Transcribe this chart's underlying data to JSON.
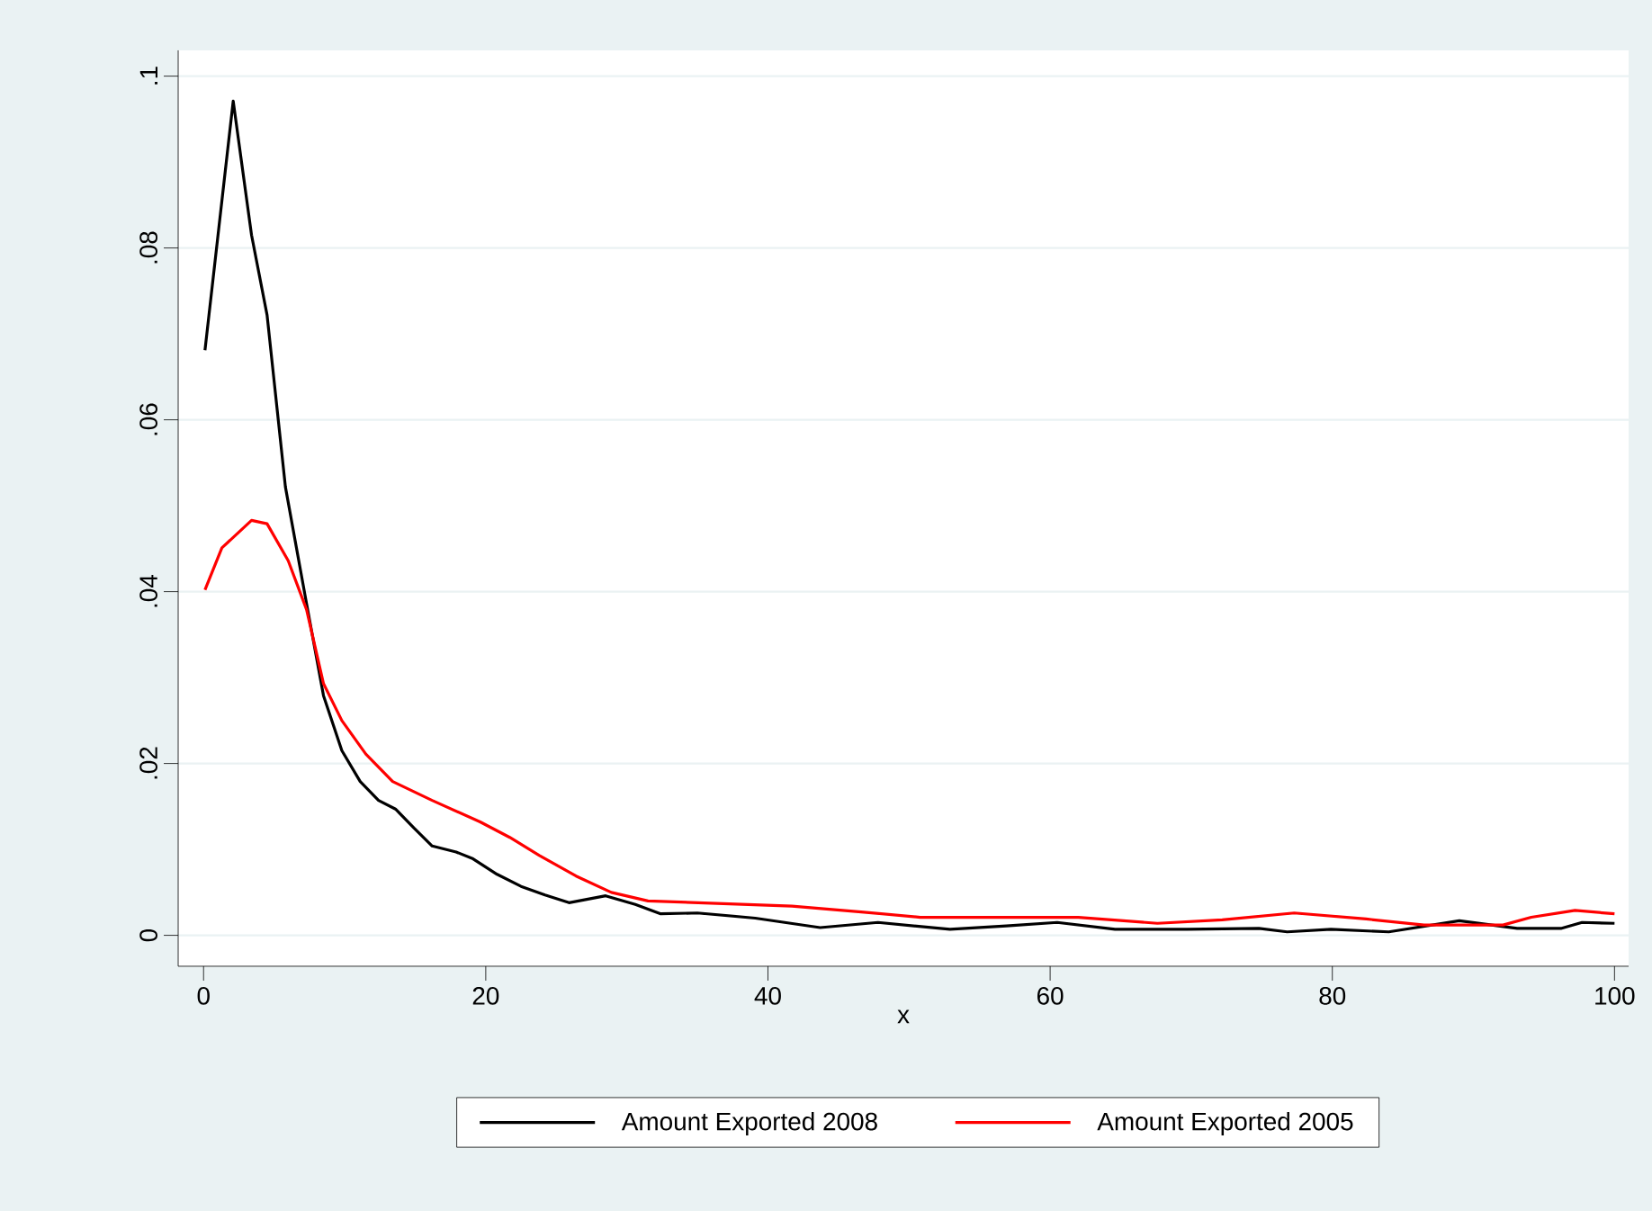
{
  "chart_data": {
    "type": "line",
    "xlabel": "x",
    "xlim": [
      -1.8,
      101
    ],
    "ylim": [
      -0.0036,
      0.103
    ],
    "xticks": [
      0,
      20,
      40,
      60,
      80,
      100
    ],
    "yticks": [
      0,
      {
        "value": 0.02,
        "label": ".02"
      },
      {
        "value": 0.04,
        "label": ".04"
      },
      {
        "value": 0.06,
        "label": ".06"
      },
      {
        "value": 0.08,
        "label": ".08"
      },
      {
        "value": 0.1,
        "label": ".1"
      }
    ],
    "grid": "y",
    "legend": "bottom",
    "marker": "none",
    "line_style": "solid",
    "series": [
      {
        "name": "Amount Exported 2008",
        "color": "#000000",
        "x": [
          0.1,
          2.1,
          3.4,
          4.5,
          5.8,
          7.3,
          8.5,
          9.8,
          11.1,
          12.4,
          13.6,
          14.9,
          16.2,
          17.9,
          19.1,
          20.8,
          22.5,
          24.2,
          25.9,
          28.5,
          30.6,
          32.4,
          35,
          39.1,
          43.7,
          47.8,
          52.9,
          56.9,
          60.5,
          64.6,
          69.7,
          74.8,
          76.8,
          79.9,
          84,
          89,
          93.1,
          96.2,
          97.7,
          100
        ],
        "values": [
          0.0681,
          0.0971,
          0.0815,
          0.0722,
          0.0522,
          0.0386,
          0.0279,
          0.0215,
          0.0179,
          0.0157,
          0.0147,
          0.0125,
          0.0104,
          0.0097,
          0.0089,
          0.0071,
          0.0057,
          0.0047,
          0.0038,
          0.0046,
          0.0036,
          0.0025,
          0.0026,
          0.002,
          0.0009,
          0.0015,
          0.0007,
          0.0011,
          0.0015,
          0.0007,
          0.0007,
          0.0008,
          0.0004,
          0.0007,
          0.0004,
          0.0017,
          0.0008,
          0.0008,
          0.0015,
          0.0014
        ]
      },
      {
        "name": "Amount Exported 2005",
        "color": "#ff0000",
        "x": [
          0.1,
          1.3,
          3.4,
          4.5,
          6.0,
          7.3,
          8.5,
          9.8,
          11.5,
          13.4,
          16.2,
          19.6,
          21.7,
          23.8,
          26.4,
          28.9,
          31.5,
          36.6,
          41.7,
          46.8,
          50.8,
          62,
          67.6,
          72.2,
          77.3,
          82.4,
          86.5,
          92.1,
          94.1,
          97.2,
          100
        ],
        "values": [
          0.0402,
          0.0451,
          0.0483,
          0.0479,
          0.0436,
          0.0379,
          0.0293,
          0.025,
          0.0211,
          0.0179,
          0.0157,
          0.0132,
          0.0114,
          0.0093,
          0.0069,
          0.005,
          0.004,
          0.0037,
          0.0034,
          0.0027,
          0.0021,
          0.0021,
          0.0014,
          0.0018,
          0.0026,
          0.0019,
          0.0012,
          0.0012,
          0.0021,
          0.0029,
          0.0025
        ]
      }
    ]
  }
}
